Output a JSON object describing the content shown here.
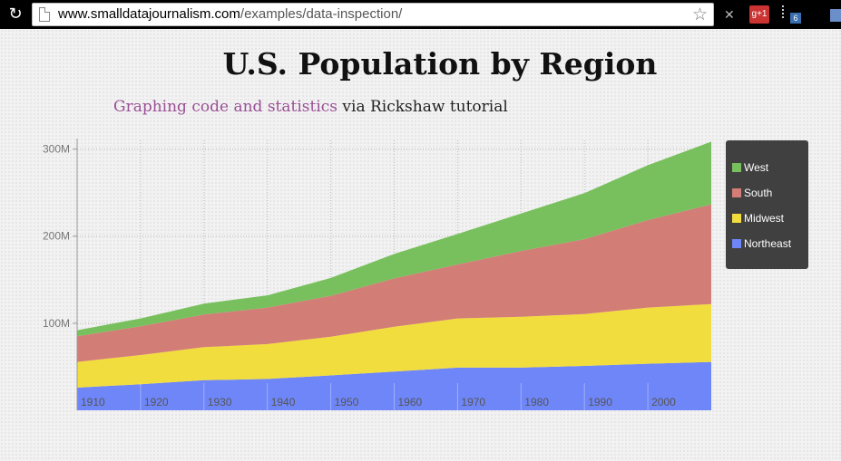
{
  "browser": {
    "url_host": "www.smalldatajournalism.com",
    "url_path": "/examples/data-inspection/",
    "ext_google_label": "g+1",
    "ext_badge_count": "6"
  },
  "page": {
    "title": "U.S. Population by Region",
    "subtitle_link": "Graphing code and statistics",
    "subtitle_rest": " via Rickshaw tutorial"
  },
  "chart_data": {
    "type": "area",
    "stacked": true,
    "x": [
      1910,
      1920,
      1930,
      1940,
      1950,
      1960,
      1970,
      1980,
      1990,
      2000,
      2010
    ],
    "x_tick_labels": [
      "1910",
      "1920",
      "1930",
      "1940",
      "1950",
      "1960",
      "1970",
      "1980",
      "1990",
      "2000"
    ],
    "y_tick_labels": [
      "100M",
      "200M",
      "300M"
    ],
    "y_ticks": [
      100000000,
      200000000,
      300000000
    ],
    "ylim": [
      0,
      310000000
    ],
    "grid": true,
    "legend_position": "right",
    "series": [
      {
        "name": "Northeast",
        "color": "#6e86f7",
        "values": [
          26000000,
          30000000,
          34500000,
          36000000,
          40000000,
          44500000,
          49000000,
          49000000,
          51000000,
          53500000,
          55500000
        ]
      },
      {
        "name": "Midwest",
        "color": "#f2dd3e",
        "values": [
          29500000,
          33500000,
          38000000,
          40000000,
          44500000,
          51500000,
          56500000,
          58500000,
          59500000,
          64500000,
          66500000
        ]
      },
      {
        "name": "South",
        "color": "#d37d77",
        "values": [
          29500000,
          33000000,
          37500000,
          42000000,
          47000000,
          55500000,
          62000000,
          75500000,
          86000000,
          100500000,
          114500000
        ]
      },
      {
        "name": "West",
        "color": "#78c05d",
        "values": [
          7000000,
          9000000,
          12500000,
          14000000,
          20500000,
          28000000,
          35000000,
          43000000,
          53000000,
          63000000,
          72000000
        ]
      }
    ]
  }
}
